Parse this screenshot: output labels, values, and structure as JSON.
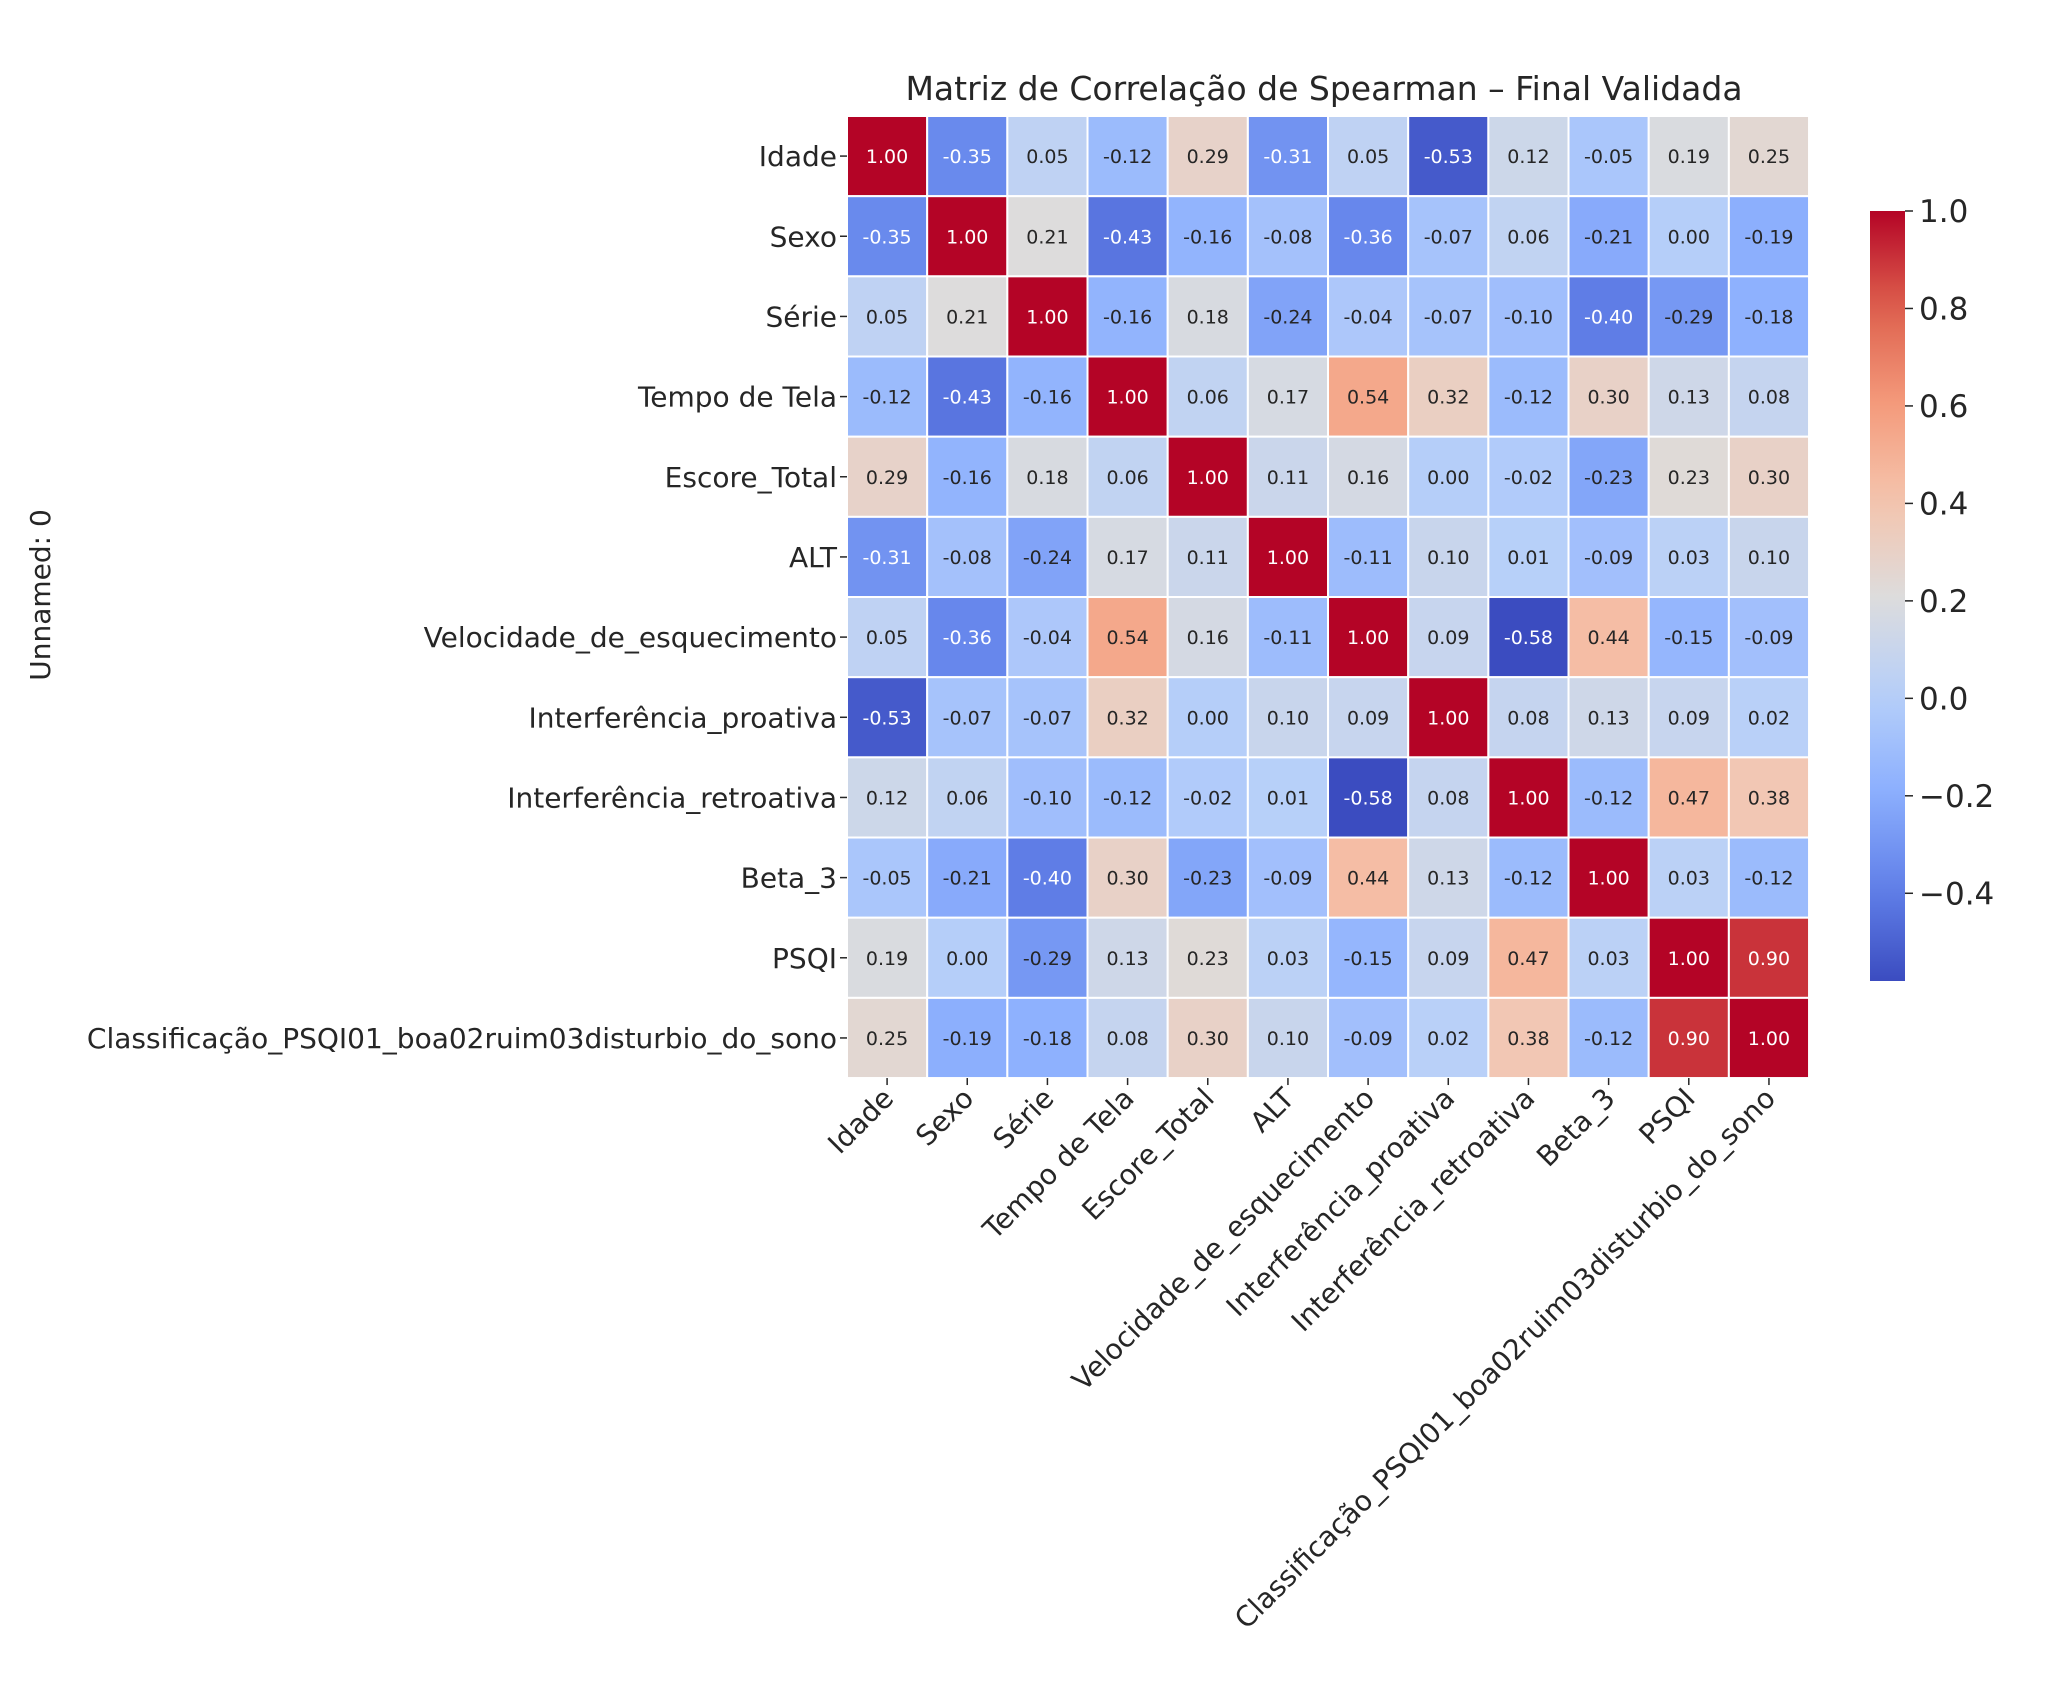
{
  "chart_data": {
    "type": "heatmap",
    "title": "Matriz de Correlação de Spearman – Final Validada",
    "xlabel": "",
    "ylabel": "Unnamed: 0",
    "labels": [
      "Idade",
      "Sexo",
      "Série",
      "Tempo de Tela",
      "Escore_Total",
      "ALT",
      "Velocidade_de_esquecimento",
      "Interferência_proativa",
      "Interferência_retroativa",
      "Beta_3",
      "PSQI",
      "Classificação_PSQI01_boa02ruim03disturbio_do_sono"
    ],
    "values": [
      [
        1.0,
        -0.35,
        0.05,
        -0.12,
        0.29,
        -0.31,
        0.05,
        -0.53,
        0.12,
        -0.05,
        0.19,
        0.25
      ],
      [
        -0.35,
        1.0,
        0.21,
        -0.43,
        -0.16,
        -0.08,
        -0.36,
        -0.07,
        0.06,
        -0.21,
        0.0,
        -0.19
      ],
      [
        0.05,
        0.21,
        1.0,
        -0.16,
        0.18,
        -0.24,
        -0.04,
        -0.07,
        -0.1,
        -0.4,
        -0.29,
        -0.18
      ],
      [
        -0.12,
        -0.43,
        -0.16,
        1.0,
        0.06,
        0.17,
        0.54,
        0.32,
        -0.12,
        0.3,
        0.13,
        0.08
      ],
      [
        0.29,
        -0.16,
        0.18,
        0.06,
        1.0,
        0.11,
        0.16,
        0.0,
        -0.02,
        -0.23,
        0.23,
        0.3
      ],
      [
        -0.31,
        -0.08,
        -0.24,
        0.17,
        0.11,
        1.0,
        -0.11,
        0.1,
        0.01,
        -0.09,
        0.03,
        0.1
      ],
      [
        0.05,
        -0.36,
        -0.04,
        0.54,
        0.16,
        -0.11,
        1.0,
        0.09,
        -0.58,
        0.44,
        -0.15,
        -0.09
      ],
      [
        -0.53,
        -0.07,
        -0.07,
        0.32,
        0.0,
        0.1,
        0.09,
        1.0,
        0.08,
        0.13,
        0.09,
        0.02
      ],
      [
        0.12,
        0.06,
        -0.1,
        -0.12,
        -0.02,
        0.01,
        -0.58,
        0.08,
        1.0,
        -0.12,
        0.47,
        0.38
      ],
      [
        -0.05,
        -0.21,
        -0.4,
        0.3,
        -0.23,
        -0.09,
        0.44,
        0.13,
        -0.12,
        1.0,
        0.03,
        -0.12
      ],
      [
        0.19,
        0.0,
        -0.29,
        0.13,
        0.23,
        0.03,
        -0.15,
        0.09,
        0.47,
        0.03,
        1.0,
        0.9
      ],
      [
        0.25,
        -0.19,
        -0.18,
        0.08,
        0.3,
        0.1,
        -0.09,
        0.02,
        0.38,
        -0.12,
        0.9,
        1.0
      ]
    ],
    "value_format": "0.00",
    "colormap": "coolwarm",
    "vmin": -0.58,
    "vmax": 1.0,
    "colorbar_ticks": [
      1.0,
      0.8,
      0.6,
      0.4,
      0.2,
      0.0,
      -0.2,
      -0.4
    ],
    "colorbar_tick_labels": [
      "1.0",
      "0.8",
      "0.6",
      "0.4",
      "0.2",
      "0.0",
      "−0.2",
      "−0.4"
    ]
  }
}
